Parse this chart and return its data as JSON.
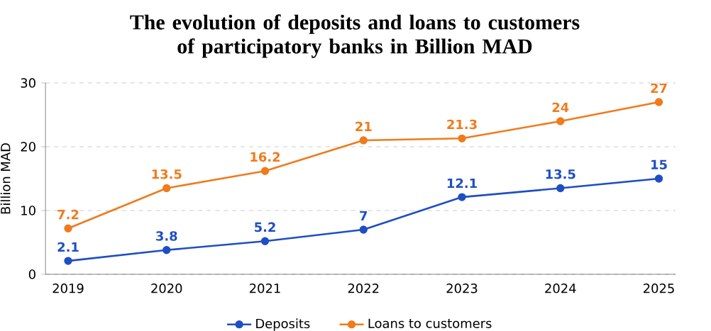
{
  "chart_data": {
    "type": "line",
    "title": "The evolution of deposits and loans to customers of participatory banks in Billion MAD",
    "ylabel": "Billion MAD",
    "categories": [
      "2019",
      "2020",
      "2021",
      "2022",
      "2023",
      "2024",
      "2025"
    ],
    "series": [
      {
        "name": "Deposits",
        "color": "#1f4ec4",
        "values": [
          2.1,
          3.8,
          5.2,
          7,
          12.1,
          13.5,
          15
        ]
      },
      {
        "name": "Loans to customers",
        "color": "#f07b1c",
        "values": [
          7.2,
          13.5,
          16.2,
          21,
          21.3,
          24,
          27
        ]
      }
    ],
    "ylim": [
      0,
      30
    ],
    "yticks": [
      0,
      10,
      20,
      30
    ],
    "grid": "y",
    "legend": "bottom",
    "marker": "circle",
    "line_style": "solid",
    "data_labels": true
  }
}
